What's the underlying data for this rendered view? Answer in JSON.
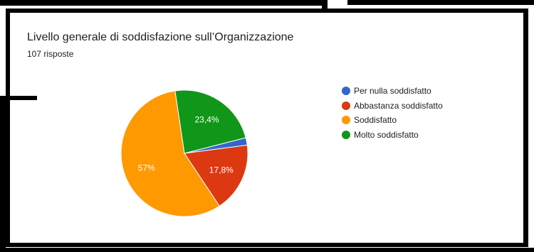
{
  "header": {
    "title": "Livello generale di soddisfazione sull’Organizzazione",
    "subtitle": "107 risposte"
  },
  "chart_data": {
    "type": "pie",
    "title": "Livello generale di soddisfazione sull’Organizzazione",
    "subtitle": "107 risposte",
    "legend_position": "right",
    "slices": [
      {
        "label": "Per nulla soddisfatto",
        "value": 1.9,
        "data_label": "",
        "color": "#3366cc"
      },
      {
        "label": "Abbastanza soddisfatto",
        "value": 17.8,
        "data_label": "17,8%",
        "color": "#dc3912"
      },
      {
        "label": "Soddisfatto",
        "value": 57,
        "data_label": "57%",
        "color": "#ff9900"
      },
      {
        "label": "Molto soddisfatto",
        "value": 23.4,
        "data_label": "23,4%",
        "color": "#109618"
      }
    ]
  }
}
